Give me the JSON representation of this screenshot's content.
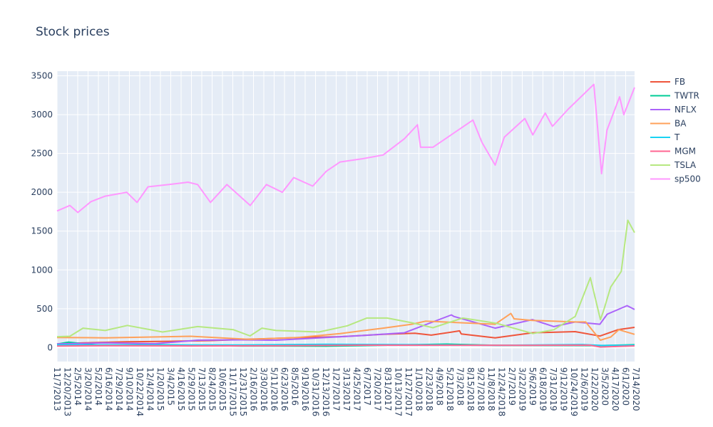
{
  "chart_data": {
    "type": "line",
    "title": "Stock prices",
    "xlabel": "",
    "ylabel": "",
    "ylim": [
      -180,
      3560
    ],
    "y_ticks": [
      0,
      500,
      1000,
      1500,
      2000,
      2500,
      3000,
      3500
    ],
    "x_range": [
      "2013-11-07",
      "2020-08-11"
    ],
    "x_tick_labels": [
      "11/7/2013",
      "12/20/2013",
      "2/5/2014",
      "3/20/2014",
      "5/2/2014",
      "6/16/2014",
      "7/29/2014",
      "9/10/2014",
      "10/22/2014",
      "12/4/2014",
      "1/20/2015",
      "3/4/2015",
      "4/16/2015",
      "5/29/2015",
      "7/13/2015",
      "8/24/2015",
      "10/6/2015",
      "11/17/2015",
      "12/31/2015",
      "2/16/2016",
      "3/30/2016",
      "5/11/2016",
      "6/23/2016",
      "8/5/2016",
      "9/19/2016",
      "10/31/2016",
      "12/13/2016",
      "1/27/2017",
      "3/13/2017",
      "4/25/2017",
      "6/7/2017",
      "7/20/2017",
      "8/31/2017",
      "10/13/2017",
      "11/27/2017",
      "1/10/2018",
      "2/23/2018",
      "4/9/2018",
      "5/21/2018",
      "7/3/2018",
      "8/15/2018",
      "9/27/2018",
      "11/8/2018",
      "12/24/2018",
      "2/7/2019",
      "3/22/2019",
      "5/6/2019",
      "6/18/2019",
      "7/31/2019",
      "9/12/2019",
      "10/24/2019",
      "12/6/2019",
      "1/22/2020",
      "3/5/2020",
      "4/17/2020",
      "6/1/2020",
      "7/14/2020"
    ],
    "grid": true,
    "legend_position": "right",
    "background_color": "#e5ecf6",
    "series": [
      {
        "name": "FB",
        "color": "#EF553B",
        "x": [
          "2013-11-07",
          "2014-03-01",
          "2014-09-01",
          "2015-03-01",
          "2015-09-01",
          "2016-03-01",
          "2016-09-01",
          "2017-03-01",
          "2017-09-01",
          "2018-01-15",
          "2018-03-26",
          "2018-07-25",
          "2018-08-01",
          "2018-12-24",
          "2019-06-01",
          "2019-12-01",
          "2020-03-16",
          "2020-06-01",
          "2020-08-11"
        ],
        "y": [
          47,
          60,
          75,
          80,
          90,
          110,
          128,
          140,
          170,
          185,
          160,
          215,
          175,
          125,
          190,
          205,
          148,
          230,
          260
        ]
      },
      {
        "name": "TWTR",
        "color": "#00CC96",
        "x": [
          "2013-11-07",
          "2013-12-26",
          "2014-05-01",
          "2015-01-01",
          "2016-01-01",
          "2017-01-01",
          "2018-06-01",
          "2019-01-01",
          "2020-03-16",
          "2020-08-11"
        ],
        "y": [
          45,
          70,
          32,
          37,
          20,
          17,
          45,
          29,
          25,
          36
        ]
      },
      {
        "name": "NFLX",
        "color": "#AB63FA",
        "x": [
          "2013-11-07",
          "2014-06-01",
          "2015-01-01",
          "2015-07-01",
          "2016-01-01",
          "2016-06-01",
          "2017-01-01",
          "2017-06-01",
          "2017-12-01",
          "2018-01-22",
          "2018-06-20",
          "2018-07-01",
          "2018-12-24",
          "2019-06-01",
          "2019-09-01",
          "2019-12-01",
          "2020-03-16",
          "2020-04-16",
          "2020-07-10",
          "2020-08-11"
        ],
        "y": [
          46,
          60,
          50,
          95,
          100,
          95,
          130,
          155,
          190,
          250,
          420,
          400,
          250,
          360,
          270,
          330,
          300,
          430,
          540,
          490
        ]
      },
      {
        "name": "BA",
        "color": "#FFA15A",
        "x": [
          "2013-11-07",
          "2014-06-01",
          "2015-06-01",
          "2016-02-10",
          "2016-09-01",
          "2017-03-01",
          "2017-09-01",
          "2018-01-01",
          "2018-03-01",
          "2018-12-24",
          "2019-03-01",
          "2019-03-15",
          "2019-06-01",
          "2019-12-01",
          "2020-01-15",
          "2020-03-18",
          "2020-05-01",
          "2020-06-05",
          "2020-08-11"
        ],
        "y": [
          130,
          125,
          145,
          105,
          130,
          180,
          250,
          300,
          340,
          300,
          440,
          370,
          350,
          330,
          330,
          95,
          135,
          230,
          170
        ]
      },
      {
        "name": "T",
        "color": "#19D3F3",
        "x": [
          "2013-11-07",
          "2015-01-01",
          "2016-01-01",
          "2017-01-01",
          "2018-01-01",
          "2019-01-01",
          "2020-01-01",
          "2020-03-23",
          "2020-08-11"
        ],
        "y": [
          35,
          33,
          34,
          42,
          37,
          29,
          39,
          27,
          30
        ]
      },
      {
        "name": "MGM",
        "color": "#FF6692",
        "x": [
          "2013-11-07",
          "2014-06-01",
          "2015-06-01",
          "2016-06-01",
          "2017-06-01",
          "2018-06-01",
          "2019-06-01",
          "2020-02-01",
          "2020-03-18",
          "2020-08-11"
        ],
        "y": [
          19,
          24,
          21,
          23,
          31,
          30,
          29,
          31,
          7,
          22
        ]
      },
      {
        "name": "TSLA",
        "color": "#B6E880",
        "x": [
          "2013-11-07",
          "2014-01-01",
          "2014-02-26",
          "2014-06-01",
          "2014-09-04",
          "2015-02-01",
          "2015-07-01",
          "2015-12-01",
          "2016-02-10",
          "2016-04-01",
          "2016-06-01",
          "2016-12-01",
          "2017-04-01",
          "2017-06-23",
          "2017-09-18",
          "2018-01-01",
          "2018-04-02",
          "2018-08-07",
          "2018-11-01",
          "2019-01-01",
          "2019-06-03",
          "2019-09-01",
          "2019-12-01",
          "2020-02-04",
          "2020-03-18",
          "2020-04-01",
          "2020-05-01",
          "2020-06-15",
          "2020-07-13",
          "2020-08-11"
        ],
        "y": [
          140,
          145,
          250,
          220,
          285,
          200,
          270,
          230,
          150,
          250,
          220,
          200,
          280,
          380,
          380,
          320,
          255,
          380,
          340,
          310,
          180,
          230,
          400,
          900,
          360,
          480,
          780,
          980,
          1640,
          1480
        ]
      },
      {
        "name": "sp500",
        "color": "#FF97FF",
        "x": [
          "2013-11-07",
          "2014-01-01",
          "2014-02-04",
          "2014-04-01",
          "2014-06-01",
          "2014-09-01",
          "2014-10-15",
          "2014-12-01",
          "2015-03-01",
          "2015-05-21",
          "2015-07-01",
          "2015-08-25",
          "2015-11-03",
          "2016-02-11",
          "2016-04-20",
          "2016-06-27",
          "2016-08-15",
          "2016-11-04",
          "2017-01-01",
          "2017-03-01",
          "2017-06-01",
          "2017-09-01",
          "2017-12-01",
          "2018-01-26",
          "2018-02-08",
          "2018-04-02",
          "2018-09-20",
          "2018-10-29",
          "2018-12-24",
          "2019-02-01",
          "2019-04-30",
          "2019-06-03",
          "2019-07-26",
          "2019-08-26",
          "2019-11-01",
          "2020-02-19",
          "2020-03-23",
          "2020-04-15",
          "2020-06-08",
          "2020-06-26",
          "2020-08-11"
        ],
        "y": [
          1760,
          1830,
          1740,
          1880,
          1950,
          2000,
          1870,
          2070,
          2100,
          2130,
          2100,
          1870,
          2100,
          1830,
          2100,
          2000,
          2190,
          2080,
          2270,
          2390,
          2430,
          2480,
          2690,
          2870,
          2580,
          2580,
          2930,
          2640,
          2350,
          2710,
          2950,
          2740,
          3020,
          2850,
          3070,
          3390,
          2240,
          2800,
          3230,
          3000,
          3350
        ]
      }
    ]
  }
}
